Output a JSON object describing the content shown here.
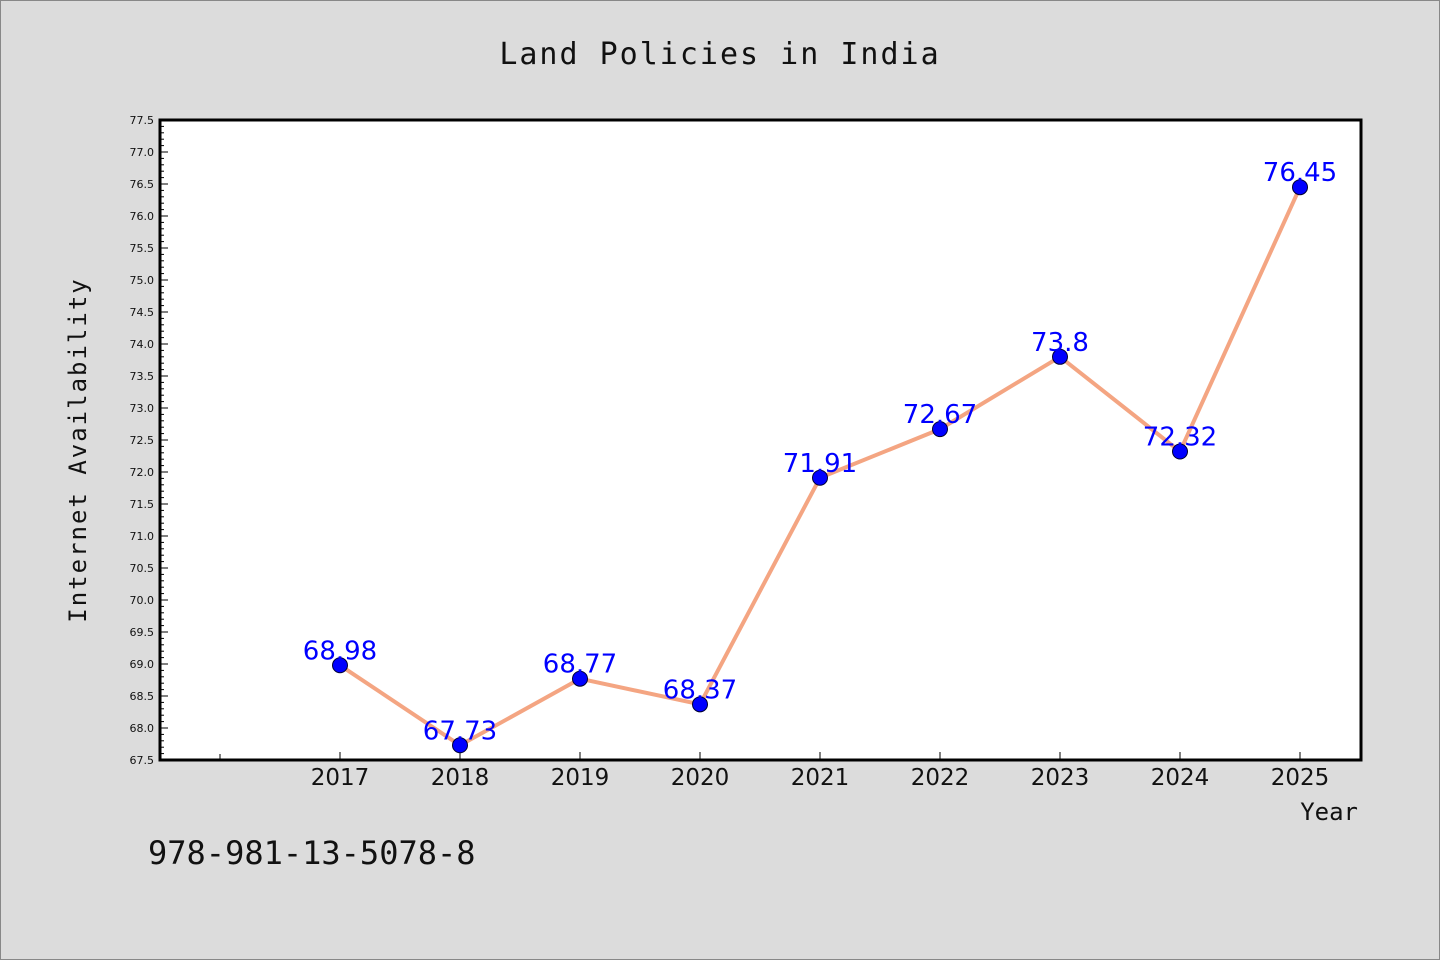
{
  "chart_data": {
    "type": "line",
    "title": "Land Policies in India",
    "xlabel": "Year",
    "ylabel": "Internet Availability",
    "categories": [
      "2017",
      "2018",
      "2019",
      "2020",
      "2021",
      "2022",
      "2023",
      "2024",
      "2025"
    ],
    "values": [
      68.98,
      67.73,
      68.77,
      68.37,
      71.91,
      72.67,
      73.8,
      72.32,
      76.45
    ],
    "data_labels": [
      "68.98",
      "67.73",
      "68.77",
      "68.37",
      "71.91",
      "72.67",
      "73.8",
      "72.32",
      "76.45"
    ],
    "ylim": [
      67.5,
      77.5
    ],
    "y_ticks": [
      "67.5",
      "68.0",
      "68.5",
      "69.0",
      "69.5",
      "70.0",
      "70.5",
      "71.0",
      "71.5",
      "72.0",
      "72.5",
      "73.0",
      "73.5",
      "74.0",
      "74.5",
      "75.0",
      "75.5",
      "76.0",
      "76.5",
      "77.0",
      "77.5"
    ],
    "grid": false,
    "colors": {
      "line": "#f4a582",
      "marker": "#0000ff",
      "label": "#0000ff",
      "plot_bg": "#ffffff",
      "page_bg": "#dcdcdc"
    }
  },
  "footer": {
    "isbn": "978-981-13-5078-8"
  }
}
